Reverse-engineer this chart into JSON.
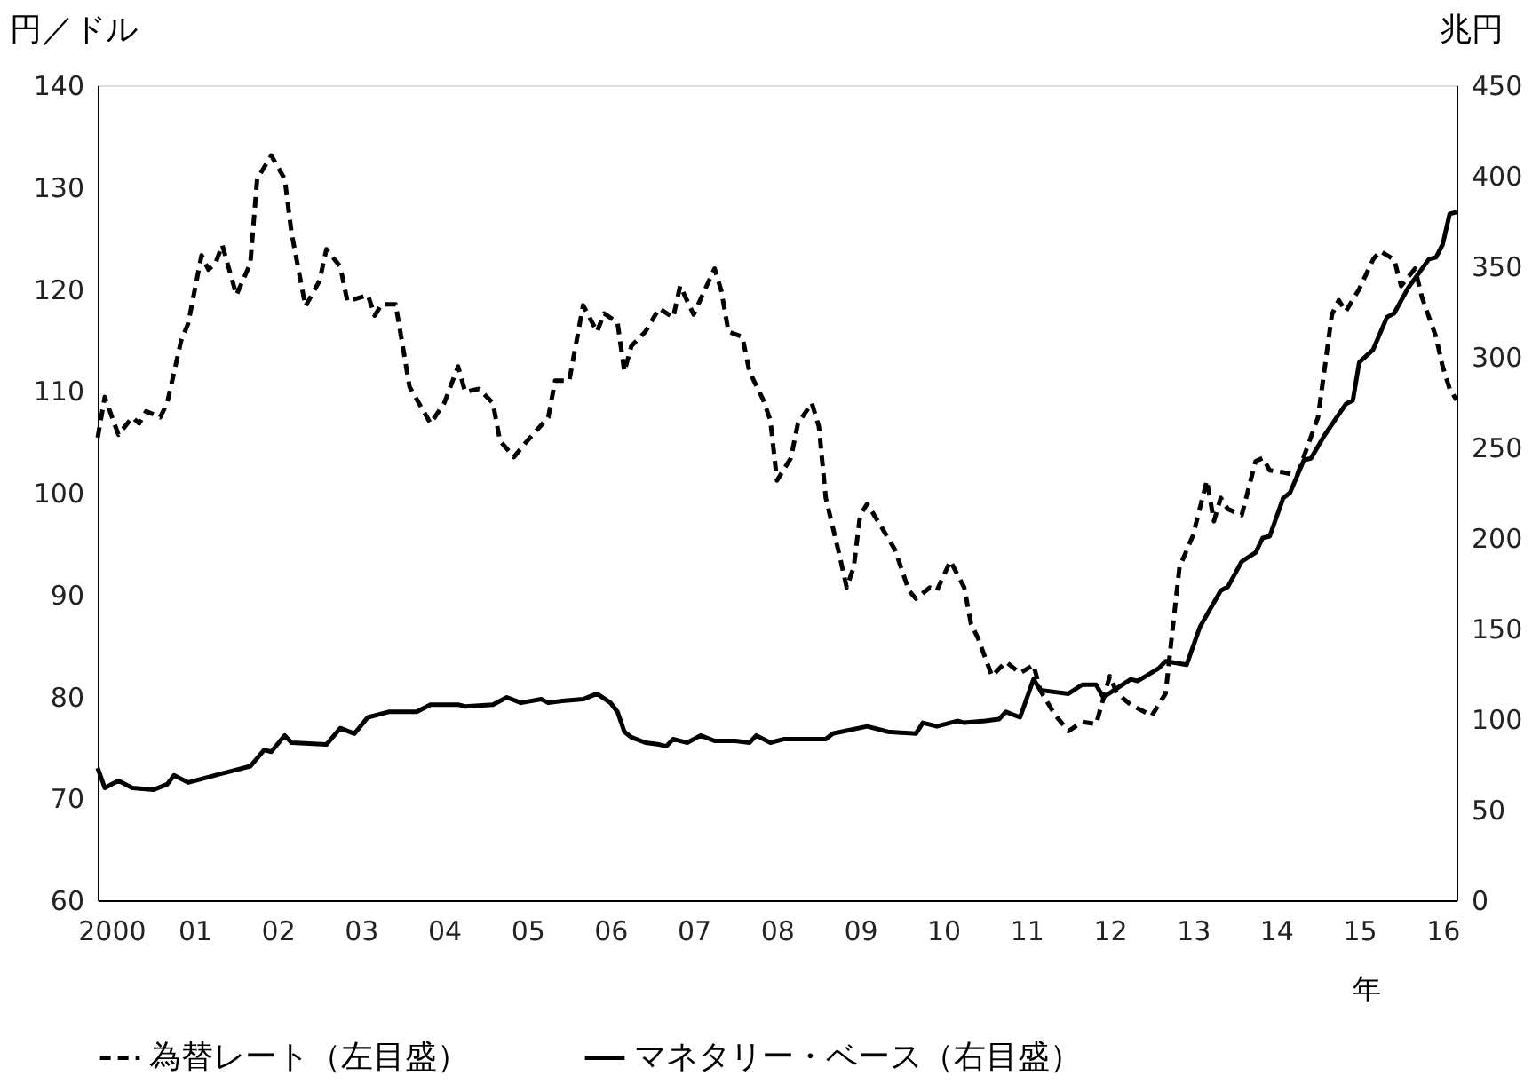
{
  "chart_data": {
    "type": "line",
    "ylabel": "円／ドル",
    "y2label": "兆円",
    "xlabel": "年",
    "legend": "bottom",
    "xlim": [
      "2000-01",
      "2016-05"
    ],
    "xticks": [
      {
        "value": "2000-03",
        "label": "2000"
      },
      {
        "value": "2001-03",
        "label": "01"
      },
      {
        "value": "2002-03",
        "label": "02"
      },
      {
        "value": "2003-03",
        "label": "03"
      },
      {
        "value": "2004-03",
        "label": "04"
      },
      {
        "value": "2005-03",
        "label": "05"
      },
      {
        "value": "2006-03",
        "label": "06"
      },
      {
        "value": "2007-03",
        "label": "07"
      },
      {
        "value": "2008-03",
        "label": "08"
      },
      {
        "value": "2009-03",
        "label": "09"
      },
      {
        "value": "2010-03",
        "label": "10"
      },
      {
        "value": "2011-03",
        "label": "11"
      },
      {
        "value": "2012-03",
        "label": "12"
      },
      {
        "value": "2013-03",
        "label": "13"
      },
      {
        "value": "2014-03",
        "label": "14"
      },
      {
        "value": "2015-03",
        "label": "15"
      },
      {
        "value": "2016-03",
        "label": "16"
      }
    ],
    "ylim": [
      60,
      140
    ],
    "yticks": [
      60,
      70,
      80,
      90,
      100,
      110,
      120,
      130,
      140
    ],
    "y2lim": [
      0,
      450
    ],
    "y2ticks": [
      0,
      50,
      100,
      150,
      200,
      250,
      300,
      350,
      400,
      450
    ],
    "series": [
      {
        "name": "為替レート（左目盛）",
        "color": "#000000",
        "line_style": "dashed",
        "axis": "y",
        "x": [
          "2000-01",
          "2000-02",
          "2000-04",
          "2000-06",
          "2000-07",
          "2000-08",
          "2000-10",
          "2000-11",
          "2001-01",
          "2001-02",
          "2001-04",
          "2001-05",
          "2001-06",
          "2001-07",
          "2001-09",
          "2001-11",
          "2001-12",
          "2002-02",
          "2002-04",
          "2002-05",
          "2002-07",
          "2002-09",
          "2002-10",
          "2002-12",
          "2003-01",
          "2003-04",
          "2003-05",
          "2003-06",
          "2003-08",
          "2003-10",
          "2004-01",
          "2004-03",
          "2004-05",
          "2004-06",
          "2004-08",
          "2004-10",
          "2004-11",
          "2005-01",
          "2005-03",
          "2005-06",
          "2005-07",
          "2005-09",
          "2005-11",
          "2006-01",
          "2006-02",
          "2006-04",
          "2006-05",
          "2006-06",
          "2006-08",
          "2006-10",
          "2006-12",
          "2007-01",
          "2007-03",
          "2007-06",
          "2007-07",
          "2007-08",
          "2007-10",
          "2007-11",
          "2008-01",
          "2008-02",
          "2008-03",
          "2008-05",
          "2008-06",
          "2008-08",
          "2008-09",
          "2008-10",
          "2008-12",
          "2009-01",
          "2009-02",
          "2009-03",
          "2009-04",
          "2009-06",
          "2009-08",
          "2009-10",
          "2009-11",
          "2010-01",
          "2010-02",
          "2010-04",
          "2010-06",
          "2010-07",
          "2010-08",
          "2010-10",
          "2010-12",
          "2011-02",
          "2011-04",
          "2011-05",
          "2011-07",
          "2011-09",
          "2011-11",
          "2012-01",
          "2012-03",
          "2012-04",
          "2012-06",
          "2012-09",
          "2012-11",
          "2012-12",
          "2013-01",
          "2013-03",
          "2013-05",
          "2013-06",
          "2013-07",
          "2013-08",
          "2013-10",
          "2013-12",
          "2014-01",
          "2014-02",
          "2014-04",
          "2014-06",
          "2014-09",
          "2014-11",
          "2014-12",
          "2015-01",
          "2015-03",
          "2015-05",
          "2015-06",
          "2015-08",
          "2015-09",
          "2015-11",
          "2015-12",
          "2016-02",
          "2016-03",
          "2016-04",
          "2016-05"
        ],
        "values": [
          105.4,
          109.4,
          105.7,
          107.4,
          106.8,
          108,
          107.4,
          108.8,
          114.9,
          116.6,
          123.3,
          121.9,
          122.5,
          124.3,
          119.4,
          122.5,
          130.8,
          133.1,
          130.8,
          125.5,
          118.3,
          120.8,
          123.9,
          122.2,
          118.8,
          119.4,
          117.4,
          118.5,
          118.5,
          110.4,
          106.8,
          108.8,
          112.4,
          109.9,
          110.2,
          108.8,
          105.1,
          103.5,
          105.1,
          107.4,
          111.0,
          111.0,
          118.4,
          115.8,
          117.6,
          116.7,
          111.9,
          114.4,
          115.8,
          118.1,
          117.2,
          120.3,
          117.5,
          122.0,
          119.8,
          115.8,
          115.3,
          111.9,
          109.1,
          107.1,
          101.2,
          103.4,
          106.8,
          108.8,
          106.5,
          99.5,
          93.8,
          90.7,
          92.7,
          97.8,
          98.9,
          96.7,
          94.4,
          90.4,
          89.6,
          90.7,
          90.4,
          93.3,
          90.7,
          87.1,
          85.7,
          82.0,
          83.4,
          82.3,
          83.1,
          80.6,
          78.3,
          76.6,
          77.5,
          77.3,
          82.0,
          80.3,
          79.2,
          78.1,
          80.3,
          86.5,
          92.7,
          95.8,
          101.2,
          97.2,
          99.5,
          98.4,
          97.8,
          103.1,
          103.4,
          102.2,
          102.0,
          101.7,
          107.4,
          117.5,
          118.9,
          117.8,
          120.0,
          122.9,
          123.7,
          122.9,
          120.3,
          122.0,
          119.2,
          115.3,
          112.4,
          110.2,
          109.1
        ]
      },
      {
        "name": "マネタリー・ベース（右目盛）",
        "color": "#000000",
        "line_style": "solid",
        "axis": "y2",
        "x": [
          "2000-01",
          "2000-02",
          "2000-04",
          "2000-06",
          "2000-09",
          "2000-11",
          "2000-12",
          "2001-02",
          "2001-04",
          "2001-07",
          "2001-11",
          "2002-01",
          "2002-02",
          "2002-04",
          "2002-05",
          "2002-10",
          "2002-12",
          "2003-02",
          "2003-04",
          "2003-07",
          "2003-11",
          "2004-01",
          "2004-05",
          "2004-06",
          "2004-10",
          "2004-12",
          "2005-02",
          "2005-05",
          "2005-06",
          "2005-08",
          "2005-11",
          "2006-01",
          "2006-03",
          "2006-04",
          "2006-05",
          "2006-06",
          "2006-08",
          "2006-10",
          "2006-11",
          "2006-12",
          "2007-02",
          "2007-04",
          "2007-06",
          "2007-09",
          "2007-11",
          "2007-12",
          "2008-02",
          "2008-04",
          "2008-10",
          "2008-11",
          "2009-04",
          "2009-07",
          "2009-11",
          "2009-12",
          "2010-02",
          "2010-05",
          "2010-06",
          "2010-09",
          "2010-11",
          "2010-12",
          "2011-02",
          "2011-04",
          "2011-05",
          "2011-09",
          "2011-11",
          "2012-01",
          "2012-02",
          "2012-04",
          "2012-06",
          "2012-07",
          "2012-10",
          "2012-11",
          "2013-02",
          "2013-03",
          "2013-04",
          "2013-07",
          "2013-08",
          "2013-10",
          "2013-12",
          "2014-01",
          "2014-02",
          "2014-04",
          "2014-05",
          "2014-07",
          "2014-08",
          "2014-10",
          "2015-01",
          "2015-02",
          "2015-03",
          "2015-05",
          "2015-07",
          "2015-08",
          "2015-10",
          "2016-01",
          "2016-02",
          "2016-03",
          "2016-04",
          "2016-05"
        ],
        "values": [
          73,
          62,
          66,
          62,
          61,
          64,
          69,
          65,
          67,
          70,
          74,
          83,
          82,
          91,
          87,
          86,
          95,
          92,
          101,
          104,
          104,
          108,
          108,
          107,
          108,
          112,
          109,
          111,
          109,
          110,
          111,
          114,
          109,
          104,
          93,
          90,
          87,
          86,
          85,
          89,
          87,
          91,
          88,
          88,
          87,
          91,
          87,
          89,
          89,
          92,
          96,
          93,
          92,
          98,
          96,
          99,
          98,
          99,
          100,
          104,
          101,
          122,
          116,
          114,
          119,
          119,
          112,
          117,
          122,
          121,
          128,
          132,
          130,
          140,
          151,
          171,
          173,
          187,
          192,
          200,
          201,
          222,
          225,
          243,
          244,
          257,
          274,
          276,
          297,
          304,
          322,
          324,
          338,
          354,
          355,
          362,
          379,
          380
        ]
      }
    ]
  }
}
